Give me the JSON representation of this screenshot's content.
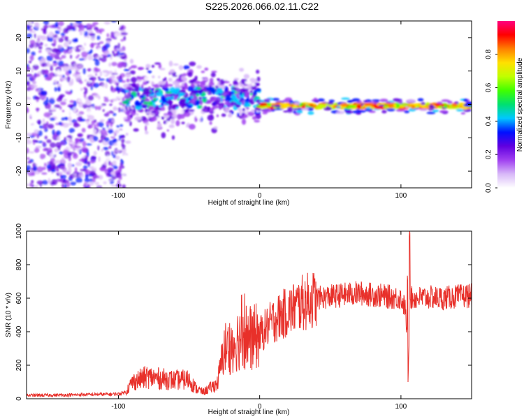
{
  "title": "S225.2026.066.02.11.C22",
  "chart_data": [
    {
      "type": "heatmap",
      "xlabel": "Height of straight line (km)",
      "ylabel": "Frequency (Hz)",
      "xlim": [
        -165,
        150
      ],
      "ylim": [
        -25,
        25
      ],
      "xticks": [
        -100,
        0,
        100
      ],
      "yticks": [
        -20,
        -10,
        0,
        10,
        20
      ],
      "colorbar": {
        "label": "Normalized spectral amplitude",
        "range": [
          0,
          1
        ],
        "ticks": [
          0.0,
          0.2,
          0.4,
          0.6,
          0.8
        ],
        "tick_labels": [
          "0.0",
          "0.2",
          "0.4",
          "0.6",
          "0.8"
        ],
        "colors": [
          "#ffffff",
          "#d8b8f8",
          "#a040f0",
          "#6000e0",
          "#0010ff",
          "#00c8ff",
          "#00e070",
          "#40ff00",
          "#c0ff00",
          "#ffe000",
          "#ff8000",
          "#ff0000",
          "#ff0080"
        ]
      },
      "signal": [
        {
          "x_range": [
            -165,
            -95
          ],
          "freq_spread": 25,
          "amplitude": 0.15,
          "description_level": "noise"
        },
        {
          "x_range": [
            -95,
            0
          ],
          "freq_center": 2,
          "freq_spread": 7,
          "amplitude": 0.3
        },
        {
          "x_range": [
            0,
            150
          ],
          "freq_center": -0.5,
          "freq_spread": 1,
          "amplitude": 0.85
        }
      ]
    },
    {
      "type": "line",
      "xlabel": "Height of straight line (km)",
      "ylabel": "SNR (10 * v/v)",
      "xlim": [
        -165,
        150
      ],
      "ylim": [
        0,
        1000
      ],
      "xticks": [
        -100,
        0,
        100
      ],
      "yticks": [
        0,
        200,
        400,
        600,
        800,
        1000
      ],
      "color": "#e8302a",
      "series": [
        {
          "name": "SNR",
          "x": [
            -165,
            -140,
            -120,
            -100,
            -95,
            -90,
            -80,
            -70,
            -60,
            -50,
            -45,
            -40,
            -30,
            -25,
            -20,
            -15,
            -10,
            -5,
            0,
            10,
            20,
            30,
            40,
            50,
            60,
            70,
            80,
            90,
            100,
            103,
            105,
            106,
            107,
            110,
            120,
            130,
            140,
            150
          ],
          "values": [
            20,
            22,
            25,
            28,
            40,
            100,
            130,
            120,
            110,
            115,
            60,
            40,
            90,
            300,
            320,
            360,
            380,
            360,
            380,
            470,
            520,
            570,
            600,
            610,
            620,
            630,
            620,
            610,
            600,
            540,
            300,
            620,
            600,
            600,
            605,
            600,
            610,
            615
          ]
        }
      ]
    }
  ]
}
